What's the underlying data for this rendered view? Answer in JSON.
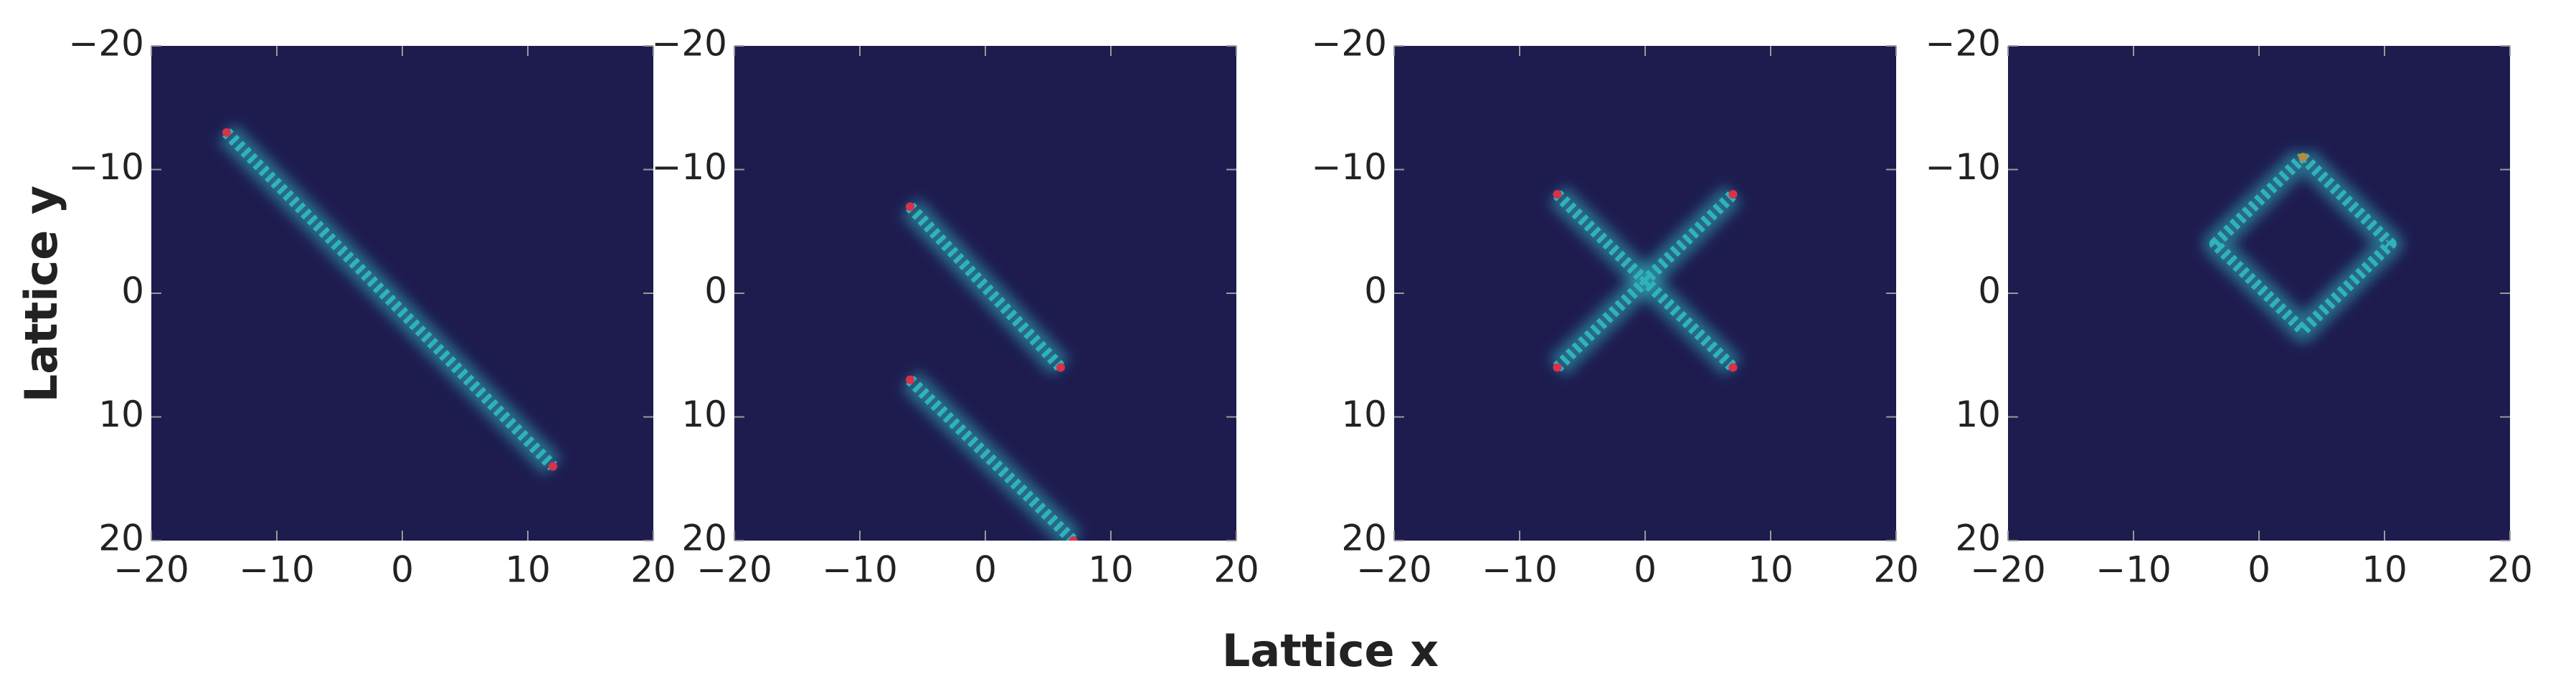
{
  "shared_labels": {
    "x": "Lattice x",
    "y": "Lattice y"
  },
  "chart_data": [
    {
      "type": "line",
      "background": "#1e1b4f",
      "y_reversed": true,
      "xlim": [
        -20,
        20
      ],
      "ylim": [
        -20,
        20
      ],
      "xticks": [
        {
          "value": -20,
          "label": "−20"
        },
        {
          "value": -10,
          "label": "−10"
        },
        0,
        10,
        20
      ],
      "yticks": [
        {
          "value": -20,
          "label": "−20"
        },
        {
          "value": -10,
          "label": "−10"
        },
        0,
        10,
        20
      ],
      "series": [
        {
          "color": "#2fb3bb",
          "end_color": "#d8324a",
          "x": [
            -14,
            12
          ],
          "y": [
            -13,
            14
          ]
        }
      ]
    },
    {
      "type": "line",
      "background": "#1e1b4f",
      "y_reversed": true,
      "xlim": [
        -20,
        20
      ],
      "ylim": [
        -20,
        20
      ],
      "xticks": [
        {
          "value": -20,
          "label": "−20"
        },
        {
          "value": -10,
          "label": "−10"
        },
        0,
        10,
        20
      ],
      "yticks": [
        {
          "value": -20,
          "label": "−20"
        },
        {
          "value": -10,
          "label": "−10"
        },
        0,
        10,
        20
      ],
      "series": [
        {
          "color": "#2fb3bb",
          "end_color": "#d8324a",
          "x": [
            -6,
            6
          ],
          "y": [
            -7,
            6
          ]
        },
        {
          "color": "#2fb3bb",
          "end_color": "#d8324a",
          "x": [
            -6,
            7
          ],
          "y": [
            7,
            20
          ]
        }
      ]
    },
    {
      "type": "line",
      "background": "#1e1b4f",
      "y_reversed": true,
      "xlim": [
        -20,
        20
      ],
      "ylim": [
        -20,
        20
      ],
      "xticks": [
        {
          "value": -20,
          "label": "−20"
        },
        {
          "value": -10,
          "label": "−10"
        },
        0,
        10,
        20
      ],
      "yticks": [
        {
          "value": -20,
          "label": "−20"
        },
        {
          "value": -10,
          "label": "−10"
        },
        0,
        10,
        20
      ],
      "series": [
        {
          "color": "#2fb3bb",
          "end_color": "#d8324a",
          "x": [
            -7,
            7
          ],
          "y": [
            -8,
            6
          ]
        },
        {
          "color": "#2fb3bb",
          "end_color": "#d8324a",
          "x": [
            -7,
            7
          ],
          "y": [
            6,
            -8
          ]
        }
      ]
    },
    {
      "type": "line",
      "background": "#1e1b4f",
      "y_reversed": true,
      "xlim": [
        -20,
        20
      ],
      "ylim": [
        -20,
        20
      ],
      "xticks": [
        {
          "value": -20,
          "label": "−20"
        },
        {
          "value": -10,
          "label": "−10"
        },
        0,
        10,
        20
      ],
      "yticks": [
        {
          "value": -20,
          "label": "−20"
        },
        {
          "value": -10,
          "label": "−10"
        },
        0,
        10,
        20
      ],
      "series": [
        {
          "color": "#2fb3bb",
          "end_color": "#b88a3a",
          "x": [
            3.5,
            10.5,
            3.5,
            -3.5,
            3.5
          ],
          "y": [
            -11,
            -4,
            3,
            -4,
            -11
          ]
        }
      ]
    }
  ]
}
